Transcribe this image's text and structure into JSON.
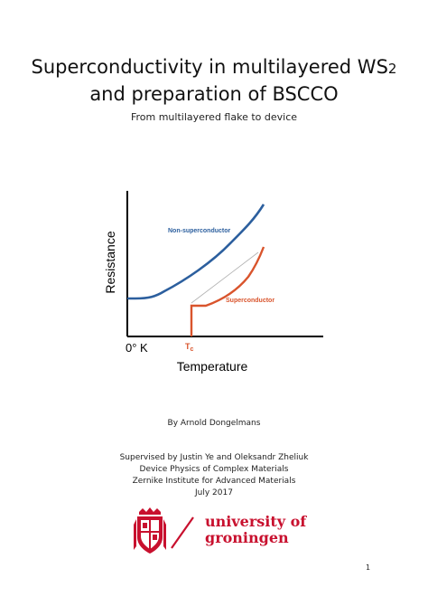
{
  "title": {
    "line1_prefix": "Superconductivity in multilayered WS",
    "line1_sub": "2",
    "line2": "and preparation of BSCCO",
    "subtitle": "From multilayered flake to device"
  },
  "figure": {
    "ylabel": "Resistance",
    "xlabel": "Temperature",
    "origin_label": "0° K",
    "tc_label": "T",
    "tc_sub": "c",
    "curves": [
      {
        "name": "Non-superconductor",
        "color": "#2c5f9e"
      },
      {
        "name": "Superconductor",
        "color": "#d9542c"
      }
    ]
  },
  "credits": {
    "author": "By Arnold Dongelmans",
    "supervisors": "Supervised by Justin Ye and Oleksandr Zheliuk",
    "group": "Device Physics of Complex Materials",
    "institute": "Zernike Institute for Advanced Materials",
    "date": "July 2017"
  },
  "logo": {
    "line1": "university of",
    "line2": "groningen",
    "color": "#c8102e"
  },
  "page_number": "1"
}
